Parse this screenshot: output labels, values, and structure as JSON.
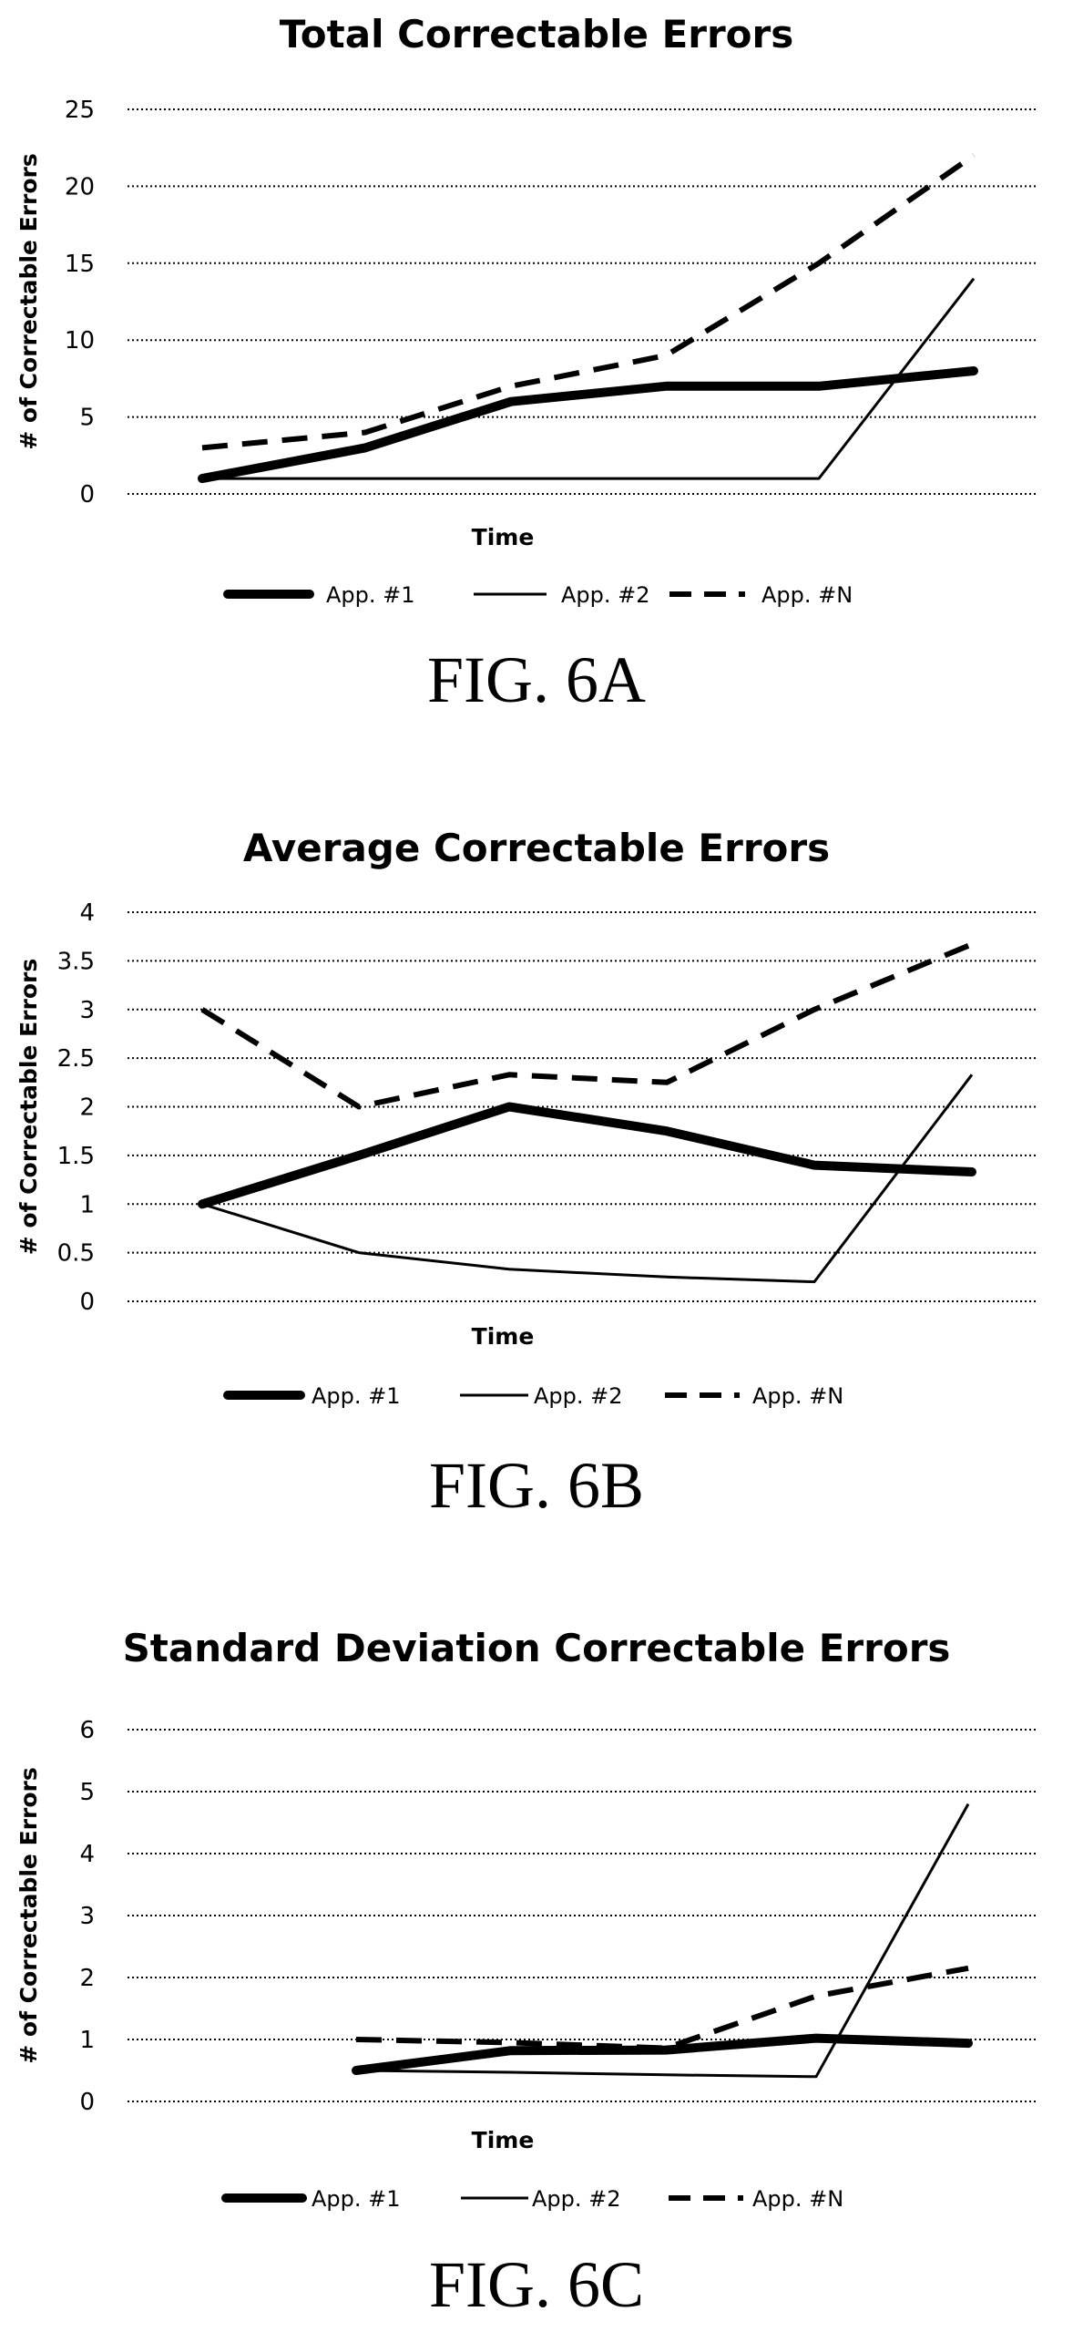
{
  "chart_data": [
    {
      "type": "line",
      "title": "Total Correctable Errors",
      "xlabel": "Time",
      "ylabel": "# of Correctable Errors",
      "ylim": [
        0,
        25
      ],
      "yticks": [
        "0",
        "5",
        "10",
        "15",
        "20",
        "25"
      ],
      "ytick_values": [
        0,
        5,
        10,
        15,
        20,
        25
      ],
      "x": [
        1,
        2,
        3,
        4,
        5,
        6
      ],
      "grid": true,
      "legend_position": "bottom",
      "series": [
        {
          "name": "App. #1",
          "style": "thick",
          "values": [
            1,
            3,
            6,
            7,
            7,
            8
          ]
        },
        {
          "name": "App. #2",
          "style": "thin",
          "values": [
            1,
            1,
            1,
            1,
            1,
            14
          ]
        },
        {
          "name": "App. #N",
          "style": "dashed",
          "values": [
            3,
            4,
            7,
            9,
            15,
            22
          ]
        }
      ],
      "caption": "FIG. 6A"
    },
    {
      "type": "line",
      "title": "Average Correctable Errors",
      "xlabel": "Time",
      "ylabel": "# of Correctable Errors",
      "ylim": [
        0,
        4
      ],
      "yticks": [
        "0",
        "0.5",
        "1",
        "1.5",
        "2",
        "2.5",
        "3",
        "3.5",
        "4"
      ],
      "ytick_values": [
        0,
        0.5,
        1,
        1.5,
        2,
        2.5,
        3,
        3.5,
        4
      ],
      "x": [
        1,
        2,
        3,
        4,
        5,
        6
      ],
      "grid": true,
      "legend_position": "bottom",
      "series": [
        {
          "name": "App. #1",
          "style": "thick",
          "values": [
            1,
            1.5,
            2,
            1.75,
            1.4,
            1.33
          ]
        },
        {
          "name": "App. #2",
          "style": "thin",
          "values": [
            1,
            0.5,
            0.33,
            0.25,
            0.2,
            2.33
          ]
        },
        {
          "name": "App. #N",
          "style": "dashed",
          "values": [
            3,
            2,
            2.33,
            2.25,
            3,
            3.67
          ]
        }
      ],
      "caption": "FIG. 6B"
    },
    {
      "type": "line",
      "title": "Standard Deviation Correctable Errors",
      "xlabel": "Time",
      "ylabel": "# of Correctable Errors",
      "ylim": [
        0,
        6
      ],
      "yticks": [
        "0",
        "1",
        "2",
        "3",
        "4",
        "5",
        "6"
      ],
      "ytick_values": [
        0,
        1,
        2,
        3,
        4,
        5,
        6
      ],
      "x": [
        1,
        2,
        3,
        4,
        5,
        6
      ],
      "grid": true,
      "legend_position": "bottom",
      "series": [
        {
          "name": "App. #1",
          "style": "thick",
          "values": [
            null,
            0.5,
            0.82,
            0.83,
            1.02,
            0.94
          ]
        },
        {
          "name": "App. #2",
          "style": "thin",
          "values": [
            null,
            0.5,
            0.47,
            0.43,
            0.4,
            4.8
          ]
        },
        {
          "name": "App. #N",
          "style": "dashed",
          "values": [
            null,
            1.0,
            0.95,
            0.86,
            1.7,
            2.15
          ]
        }
      ],
      "caption": "FIG. 6C"
    }
  ]
}
